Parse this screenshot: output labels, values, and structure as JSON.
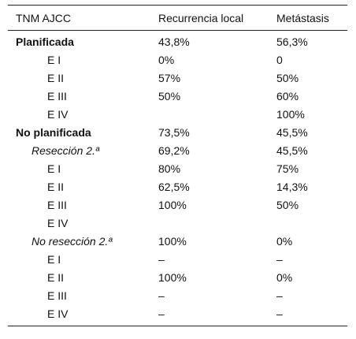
{
  "table": {
    "headers": [
      "TNM AJCC",
      "Recurrencia local",
      "Metástasis"
    ],
    "rows": [
      {
        "label": "Planificada",
        "level": 0,
        "local": "43,8%",
        "meta": "56,3%"
      },
      {
        "label": "E I",
        "level": 2,
        "local": "0%",
        "meta": "0"
      },
      {
        "label": "E II",
        "level": 2,
        "local": "57%",
        "meta": "50%"
      },
      {
        "label": "E III",
        "level": 2,
        "local": "50%",
        "meta": "60%"
      },
      {
        "label": "E IV",
        "level": 2,
        "local": "",
        "meta": "100%"
      },
      {
        "label": "No planificada",
        "level": 0,
        "local": "73,5%",
        "meta": "45,5%"
      },
      {
        "label": "Resección 2.ª",
        "level": 1,
        "local": "69,2%",
        "meta": "45,5%"
      },
      {
        "label": "E I",
        "level": 2,
        "local": "80%",
        "meta": "75%"
      },
      {
        "label": "E II",
        "level": 2,
        "local": "62,5%",
        "meta": "14,3%"
      },
      {
        "label": "E III",
        "level": 2,
        "local": "100%",
        "meta": "50%"
      },
      {
        "label": "E IV",
        "level": 2,
        "local": "",
        "meta": ""
      },
      {
        "label": "No resección 2.ª",
        "level": 1,
        "local": "100%",
        "meta": "0%"
      },
      {
        "label": "E I",
        "level": 2,
        "local": "–",
        "meta": "–"
      },
      {
        "label": "E II",
        "level": 2,
        "local": "100%",
        "meta": "0%"
      },
      {
        "label": "E III",
        "level": 2,
        "local": "–",
        "meta": "–"
      },
      {
        "label": "E IV",
        "level": 2,
        "local": "–",
        "meta": "–"
      }
    ]
  }
}
